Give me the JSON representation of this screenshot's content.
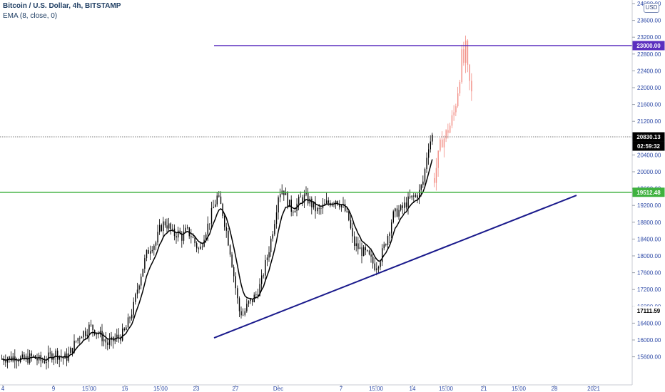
{
  "legend": {
    "title": "Bitcoin / U.S. Dollar, 4h, BITSTAMP",
    "indicator": "EMA (8, close, 0)"
  },
  "currency_badge": "USD",
  "colors": {
    "candle": "#000000",
    "ema": "#000000",
    "projection": "#f28b82",
    "resistance_line": "#5b2fbf",
    "support_line": "#3fb23f",
    "trendline": "#1a1a8c",
    "axis_text": "#2d49a6",
    "last_price_bg": "#000000"
  },
  "chart_data": {
    "type": "candlestick",
    "y_axis": {
      "ticks": [
        15600,
        16000,
        16400,
        16800,
        17200,
        17600,
        18000,
        18400,
        18800,
        19200,
        19600,
        20000,
        20400,
        20800,
        21200,
        21600,
        22000,
        22400,
        22800,
        23200,
        23600,
        24000
      ],
      "labels": [
        "15600.00",
        "16000.00",
        "16400.00",
        "16800.00",
        "17200.00",
        "17600.00",
        "18000.00",
        "18400.00",
        "18800.00",
        "19200.00",
        "19600.00",
        "20000.00",
        "20400.00",
        "20800.00",
        "21200.00",
        "21600.00",
        "22000.00",
        "22400.00",
        "22800.00",
        "23200.00",
        "23600.00",
        "24000.00"
      ],
      "ylim": [
        15450,
        24620
      ]
    },
    "x_axis": {
      "labels": [
        "4",
        "9",
        "15:00",
        "16",
        "15:00",
        "23",
        "27",
        "Dec",
        "7",
        "15:00",
        "14",
        "15:00",
        "21",
        "15:00",
        "28",
        "2021"
      ]
    },
    "price_labels": {
      "resistance": "23000.00",
      "last_price": "20830.13",
      "countdown": "02:59:32",
      "support": "19512.48",
      "crosshair": "17111.59"
    },
    "levels": {
      "resistance": 23000,
      "support": 19512.48,
      "last_price": 20830.13
    },
    "trendline": {
      "from": 16050,
      "to": 19440
    },
    "series": [
      {
        "name": "Price",
        "close_path": [
          15550,
          15580,
          15560,
          15620,
          15540,
          15520,
          15570,
          15600,
          15540,
          15500,
          15530,
          15620,
          15700,
          15640,
          15560,
          15600,
          15800,
          16000,
          16150,
          16200,
          16320,
          16250,
          16150,
          16050,
          15900,
          15950,
          16050,
          16100,
          16200,
          16500,
          16800,
          17300,
          17700,
          18050,
          18250,
          18300,
          18650,
          18800,
          18700,
          18500,
          18550,
          18450,
          18600,
          18500,
          18300,
          18100,
          18500,
          18750,
          19100,
          19400,
          19150,
          18650,
          18100,
          17400,
          16700,
          16600,
          16850,
          16950,
          17100,
          17350,
          17800,
          18250,
          18800,
          19500,
          19600,
          19300,
          19100,
          19200,
          19350,
          19400,
          19300,
          19150,
          19050,
          19150,
          19250,
          19300,
          19350,
          19250,
          19100,
          18850,
          18300,
          18200,
          18100,
          18050,
          17900,
          17750,
          17900,
          18200,
          18550,
          18950,
          19050,
          19100,
          19250,
          19350,
          19400,
          19500,
          19800,
          20600,
          20850
        ],
        "projection_path": [
          19850,
          20100,
          20350,
          20600,
          20750,
          20800,
          20900,
          21000,
          21100,
          21250,
          21400,
          21650,
          21950,
          22300,
          22750,
          22600,
          22950,
          22400,
          22100,
          21850
        ]
      },
      {
        "name": "EMA (8, close, 0)"
      }
    ]
  }
}
